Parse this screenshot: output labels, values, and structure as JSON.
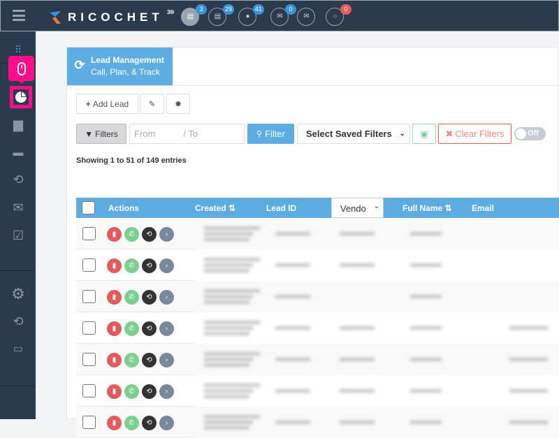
{
  "app": {
    "brand": "RICOCHET",
    "brand_sup": "360"
  },
  "notifications": [
    {
      "icon": "voicemail-icon",
      "count": "3",
      "active": true
    },
    {
      "icon": "voicemail-icon",
      "count": "29"
    },
    {
      "icon": "chat-icon",
      "count": "41"
    },
    {
      "icon": "mail-icon",
      "count": "0"
    },
    {
      "icon": "open-mail-icon",
      "count": ""
    },
    {
      "icon": "comment-icon",
      "count": "0",
      "color": "#e45a5a"
    }
  ],
  "sidebar": {
    "items": [
      "dialpad",
      "mouse",
      "pie-chart",
      "contacts",
      "messages",
      "share",
      "mail",
      "tasks",
      "settings",
      "share-2",
      "monitor"
    ],
    "highlight_color": "#ff0d8a"
  },
  "tab": {
    "title": "Lead Management",
    "subtitle": "Call, Plan, & Track"
  },
  "toolbar": {
    "add_lead": "Add Lead"
  },
  "filters": {
    "filters_label": "Filters",
    "from_placeholder": "From",
    "to_placeholder": "/ To",
    "filter_button": "Filter",
    "saved_filters": "Select Saved Filters",
    "clear_filters": "Clear Filters",
    "toggle": "Off"
  },
  "table": {
    "info": "Showing 1 to 51 of 149 entries",
    "columns": {
      "actions": "Actions",
      "created": "Created ⇅",
      "lead_id": "Lead ID",
      "vendor": "Vendo",
      "full_name": "Full Name ⇅",
      "email": "Email"
    },
    "row_count": 7
  },
  "colors": {
    "topbar": "#2c3a4e",
    "accent": "#5dade2",
    "delete": "#e45a5a",
    "call": "#7dcf8e",
    "history": "#333333",
    "open": "#7a879c"
  }
}
